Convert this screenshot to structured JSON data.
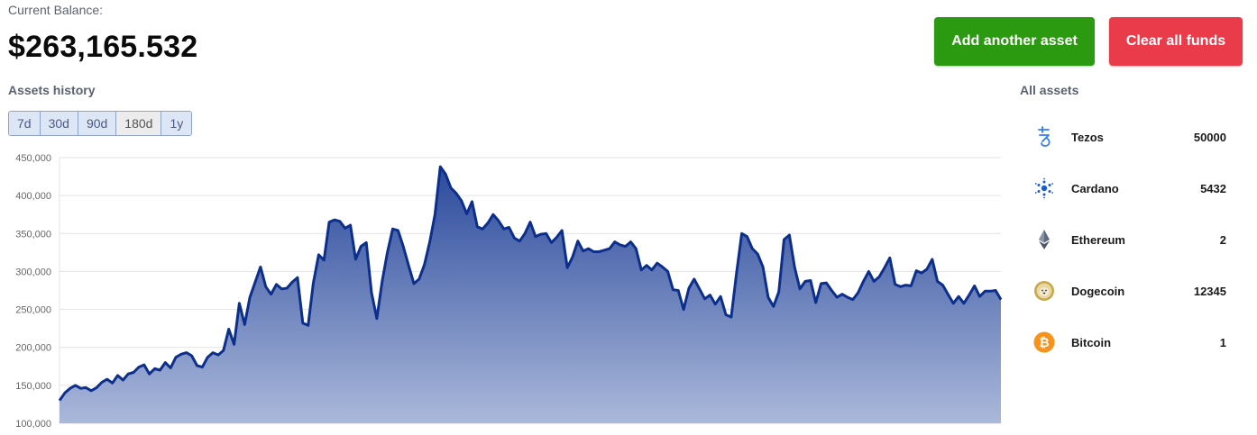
{
  "balance": {
    "label": "Current Balance:",
    "value": "$263,165.532"
  },
  "actions": {
    "add_label": "Add another asset",
    "clear_label": "Clear all funds",
    "add_color": "#2c9a10",
    "clear_color": "#ea3b4a"
  },
  "history": {
    "title": "Assets history",
    "ranges": [
      "7d",
      "30d",
      "90d",
      "180d",
      "1y"
    ],
    "active_range": "180d"
  },
  "assets": {
    "title": "All assets",
    "items": [
      {
        "name": "Tezos",
        "amount": "50000",
        "icon": "tezos-icon"
      },
      {
        "name": "Cardano",
        "amount": "5432",
        "icon": "cardano-icon"
      },
      {
        "name": "Ethereum",
        "amount": "2",
        "icon": "ethereum-icon"
      },
      {
        "name": "Dogecoin",
        "amount": "12345",
        "icon": "dogecoin-icon"
      },
      {
        "name": "Bitcoin",
        "amount": "1",
        "icon": "bitcoin-icon"
      }
    ]
  },
  "chart_data": {
    "type": "area",
    "title": "",
    "xlabel": "",
    "ylabel": "",
    "ylim": [
      100000,
      450000
    ],
    "yticks": [
      "450,000",
      "400,000",
      "350,000",
      "300,000",
      "250,000",
      "200,000",
      "150,000",
      "100,000"
    ],
    "ytick_values": [
      450000,
      400000,
      350000,
      300000,
      250000,
      200000,
      150000,
      100000
    ],
    "grid": true,
    "line_color": "#0d2f8c",
    "fill_top": "#2b4a9c",
    "fill_bottom": "#aab8da",
    "series": [
      {
        "values": [
          130000,
          140000,
          146000,
          150000,
          146000,
          147000,
          143000,
          147000,
          154000,
          158000,
          153000,
          163000,
          157000,
          165000,
          167000,
          174000,
          177000,
          165000,
          172000,
          170000,
          180000,
          173000,
          187000,
          191000,
          193000,
          189000,
          176000,
          174000,
          187000,
          193000,
          190000,
          196000,
          224000,
          204000,
          258000,
          230000,
          266000,
          286000,
          306000,
          280000,
          270000,
          283000,
          277000,
          278000,
          286000,
          292000,
          232000,
          229000,
          285000,
          322000,
          315000,
          365000,
          368000,
          366000,
          357000,
          361000,
          316000,
          333000,
          338000,
          272000,
          238000,
          287000,
          325000,
          356000,
          354000,
          333000,
          308000,
          284000,
          290000,
          309000,
          339000,
          375000,
          438000,
          428000,
          410000,
          403000,
          393000,
          376000,
          392000,
          359000,
          356000,
          364000,
          375000,
          367000,
          356000,
          358000,
          344000,
          340000,
          350000,
          365000,
          346000,
          349000,
          350000,
          338000,
          345000,
          354000,
          305000,
          319000,
          340000,
          327000,
          330000,
          326000,
          326000,
          328000,
          330000,
          339000,
          335000,
          333000,
          339000,
          330000,
          302000,
          308000,
          302000,
          311000,
          306000,
          300000,
          276000,
          275000,
          250000,
          278000,
          290000,
          277000,
          264000,
          269000,
          257000,
          267000,
          243000,
          240000,
          297000,
          350000,
          346000,
          330000,
          323000,
          306000,
          266000,
          254000,
          273000,
          342000,
          348000,
          305000,
          277000,
          287000,
          288000,
          259000,
          284000,
          285000,
          275000,
          266000,
          270000,
          266000,
          263000,
          272000,
          287000,
          300000,
          287000,
          293000,
          305000,
          318000,
          283000,
          280000,
          282000,
          281000,
          301000,
          298000,
          303000,
          316000,
          287000,
          282000,
          270000,
          258000,
          267000,
          258000,
          269000,
          281000,
          267000,
          274000,
          274000,
          275000,
          263000
        ]
      }
    ]
  }
}
